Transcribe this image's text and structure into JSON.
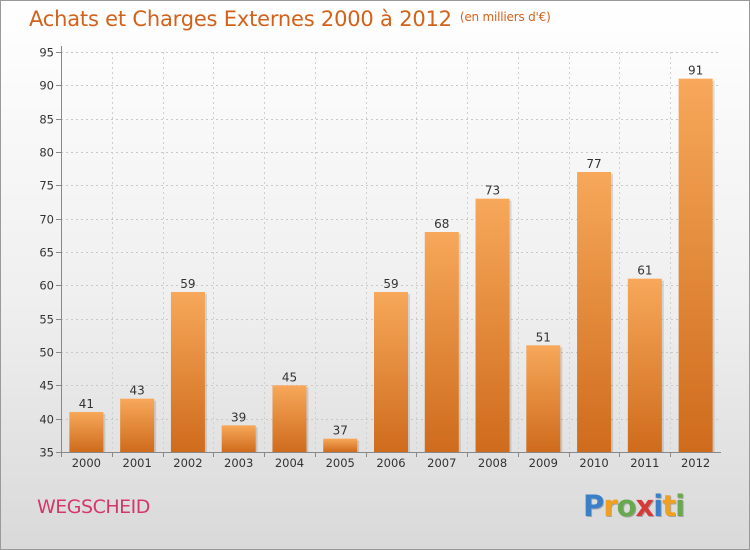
{
  "header": {
    "title": "Achats et Charges Externes 2000 à 2012",
    "unit": "(en milliers d'€)"
  },
  "footer": {
    "commune": "WEGSCHEID",
    "brand": [
      "P",
      "r",
      "o",
      "x",
      "i",
      "t",
      "i"
    ]
  },
  "colors": {
    "title": "#d2621b",
    "bar_light": "#f7a85a",
    "bar_dark": "#cf6b1c",
    "commune": "#d4386a",
    "brand": [
      "#3a7fc8",
      "#f0a020",
      "#6aa84f",
      "#d83a3a",
      "#3a7fc8",
      "#f0a020",
      "#6aa84f"
    ]
  },
  "chart_data": {
    "type": "bar",
    "title": "Achats et Charges Externes 2000 à 2012",
    "xlabel": "",
    "ylabel": "",
    "categories": [
      "2000",
      "2001",
      "2002",
      "2003",
      "2004",
      "2005",
      "2006",
      "2007",
      "2008",
      "2009",
      "2010",
      "2011",
      "2012"
    ],
    "values": [
      41,
      43,
      59,
      39,
      45,
      37,
      59,
      68,
      73,
      51,
      77,
      61,
      91
    ],
    "ylim": [
      35,
      95
    ],
    "yticks": [
      35,
      40,
      45,
      50,
      55,
      60,
      65,
      70,
      75,
      80,
      85,
      90,
      95
    ],
    "grid": true,
    "legend": "none"
  }
}
